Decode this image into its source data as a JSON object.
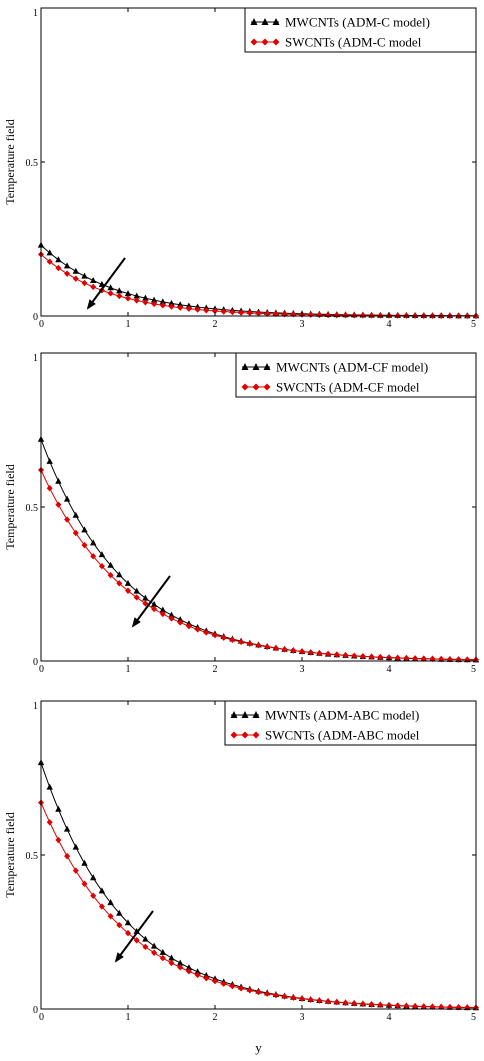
{
  "chart_data": [
    {
      "type": "line",
      "ylabel": "Temperature field",
      "xlim": [
        0,
        5
      ],
      "ylim": [
        0,
        1
      ],
      "xticks": [
        "0",
        "1",
        "2",
        "3",
        "4",
        "5"
      ],
      "yticks": [
        "0",
        "0.5",
        "1"
      ],
      "legend_position": "top-right",
      "series": [
        {
          "name": "MWCNTs (ADM-C model)",
          "initial": 0.23,
          "decay": 1.15,
          "color": "#000000",
          "marker": "triangle"
        },
        {
          "name": "SWCNTs (ADM-C model",
          "initial": 0.2,
          "decay": 1.25,
          "color": "#e00000",
          "marker": "diamond"
        }
      ],
      "annotation": "arrow pointing toward decreasing temperature"
    },
    {
      "type": "line",
      "ylabel": "Temperature field",
      "xlim": [
        0,
        5
      ],
      "ylim": [
        0,
        1
      ],
      "xticks": [
        "0",
        "1",
        "2",
        "3",
        "4",
        "5"
      ],
      "yticks": [
        "0",
        "0.5",
        "1"
      ],
      "legend_position": "top-right",
      "series": [
        {
          "name": "MWCNTs (ADM-CF model)",
          "initial": 0.72,
          "decay": 1.05,
          "color": "#000000",
          "marker": "triangle"
        },
        {
          "name": "SWCNTs (ADM-CF model",
          "initial": 0.62,
          "decay": 1.0,
          "color": "#e00000",
          "marker": "diamond"
        }
      ],
      "annotation": "arrow pointing toward decreasing temperature"
    },
    {
      "type": "line",
      "ylabel": "Temperature field",
      "xlabel": "y",
      "xlim": [
        0,
        5
      ],
      "ylim": [
        0,
        1
      ],
      "xticks": [
        "0",
        "1",
        "2",
        "3",
        "4",
        "5"
      ],
      "yticks": [
        "0",
        "0.5",
        "1"
      ],
      "legend_position": "top-right",
      "series": [
        {
          "name": "MWNTs (ADM-ABC model)",
          "initial": 0.8,
          "decay": 1.05,
          "color": "#000000",
          "marker": "triangle"
        },
        {
          "name": "SWCNTs  (ADM-ABC model",
          "initial": 0.67,
          "decay": 1.0,
          "color": "#e00000",
          "marker": "diamond"
        }
      ],
      "annotation": "arrow pointing toward decreasing temperature"
    }
  ]
}
